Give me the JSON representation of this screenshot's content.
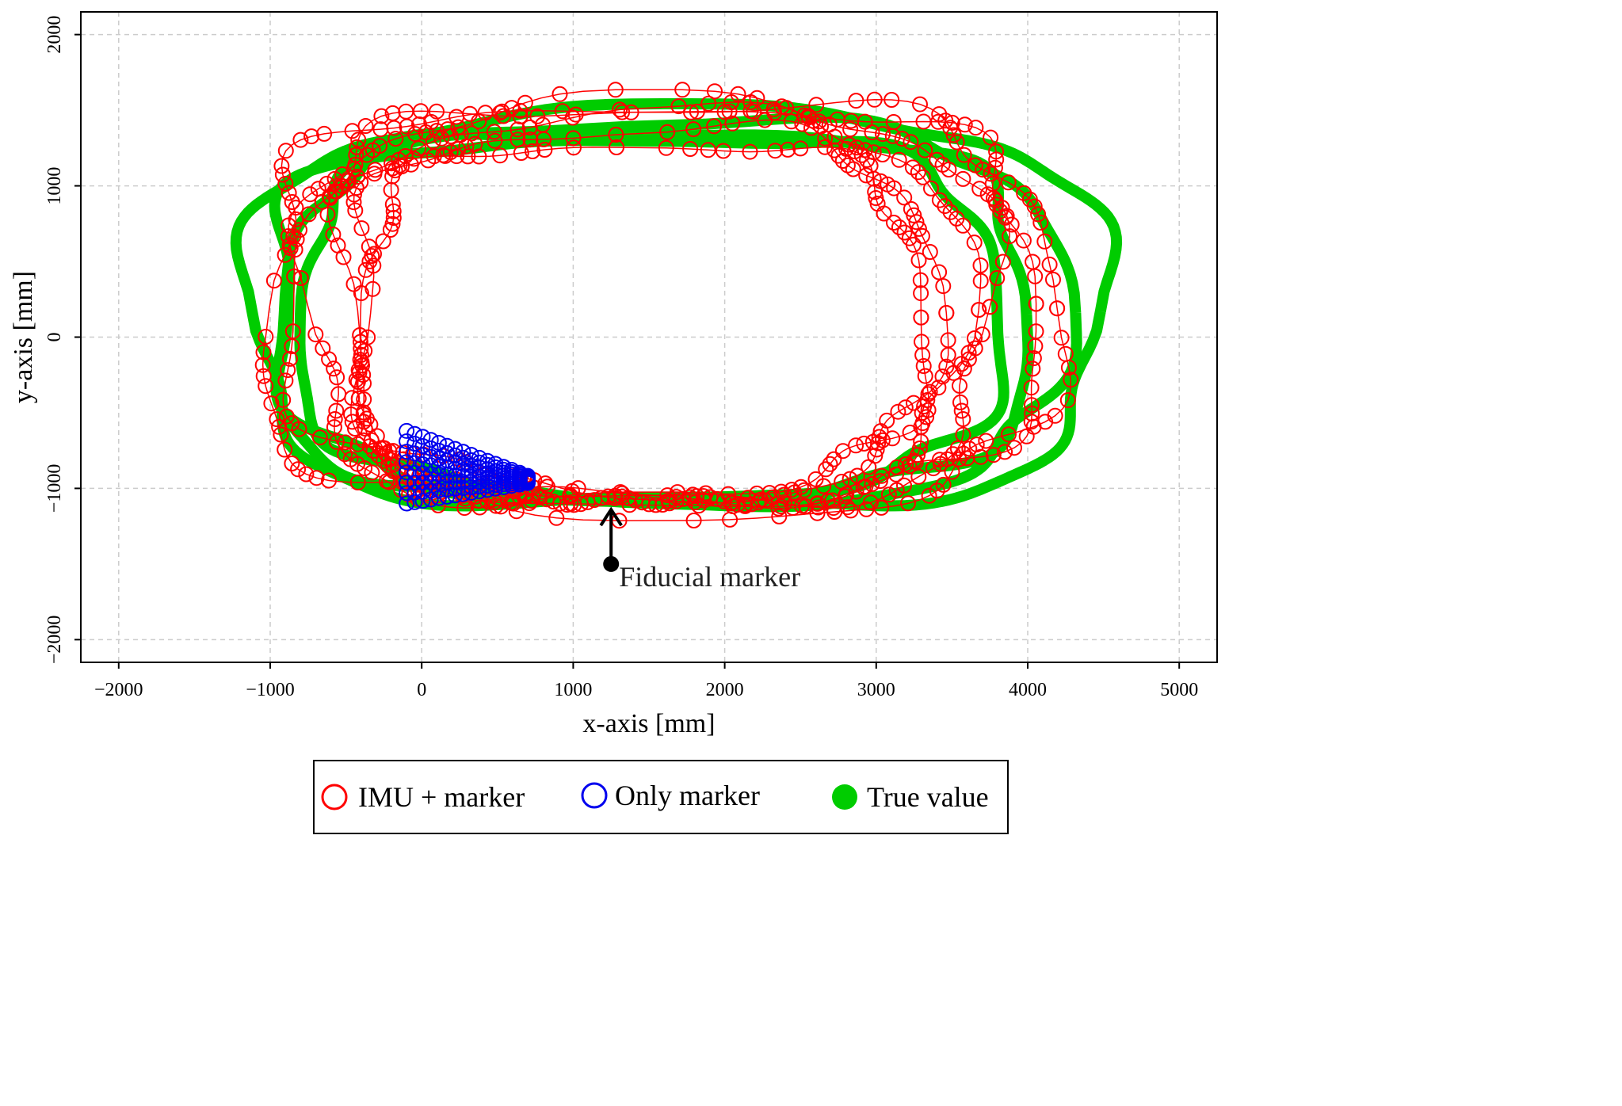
{
  "chart_data": {
    "type": "scatter",
    "title": "",
    "xlabel": "x-axis [mm]",
    "ylabel": "y-axis [mm]",
    "xlim": [
      -2250,
      5250
    ],
    "ylim": [
      -2150,
      2150
    ],
    "xticks": [
      -2000,
      -1000,
      0,
      1000,
      2000,
      3000,
      4000,
      5000
    ],
    "yticks": [
      -2000,
      -1000,
      0,
      1000,
      2000
    ],
    "xtick_labels": [
      "−2000",
      "−1000",
      "0",
      "1000",
      "2000",
      "3000",
      "4000",
      "5000"
    ],
    "ytick_labels": [
      "−2000",
      "−1000",
      "0",
      "1000",
      "2000"
    ],
    "grid": true,
    "legend_position": "bottom",
    "colors": {
      "imu": "#ff0000",
      "marker": "#0000ee",
      "true": "#00cc00"
    },
    "series": [
      {
        "name": "IMU + marker",
        "style": "open-circle-line",
        "color": "#ff0000",
        "laps": [
          {
            "cx": 1500,
            "cy": 200,
            "rx": 2250,
            "ry": 1330,
            "phase": 0.0
          },
          {
            "cx": 1500,
            "cy": 180,
            "rx": 2050,
            "ry": 1280,
            "phase": 0.7
          },
          {
            "cx": 1450,
            "cy": 160,
            "rx": 1900,
            "ry": 1210,
            "phase": 1.4
          },
          {
            "cx": 1550,
            "cy": 190,
            "rx": 2600,
            "ry": 1350,
            "phase": 2.1
          },
          {
            "cx": 1450,
            "cy": 130,
            "rx": 1850,
            "ry": 1150,
            "phase": 2.8
          },
          {
            "cx": 1600,
            "cy": 220,
            "rx": 2450,
            "ry": 1300,
            "phase": 3.5
          }
        ]
      },
      {
        "name": "Only marker",
        "style": "open-circle",
        "color": "#0000ee",
        "cluster": {
          "x0": -100,
          "x1": 700,
          "y0": -1100,
          "y1": -620
        }
      },
      {
        "name": "True value",
        "style": "filled-line",
        "color": "#00cc00",
        "laps": [
          {
            "cx": 1680,
            "cy": 170,
            "rx": 2800,
            "ry": 1300
          },
          {
            "cx": 1600,
            "cy": 160,
            "rx": 2600,
            "ry": 1250
          },
          {
            "cx": 1500,
            "cy": 140,
            "rx": 2300,
            "ry": 1180
          },
          {
            "cx": 1550,
            "cy": 150,
            "rx": 2450,
            "ry": 1210
          }
        ]
      }
    ],
    "annotations": [
      {
        "text": "Fiducial marker",
        "x": 1250,
        "y": -1500,
        "arrow_to_y": -1140
      }
    ]
  },
  "legend": {
    "items": [
      {
        "label": "IMU + marker"
      },
      {
        "label": "Only marker"
      },
      {
        "label": "True value"
      }
    ]
  }
}
